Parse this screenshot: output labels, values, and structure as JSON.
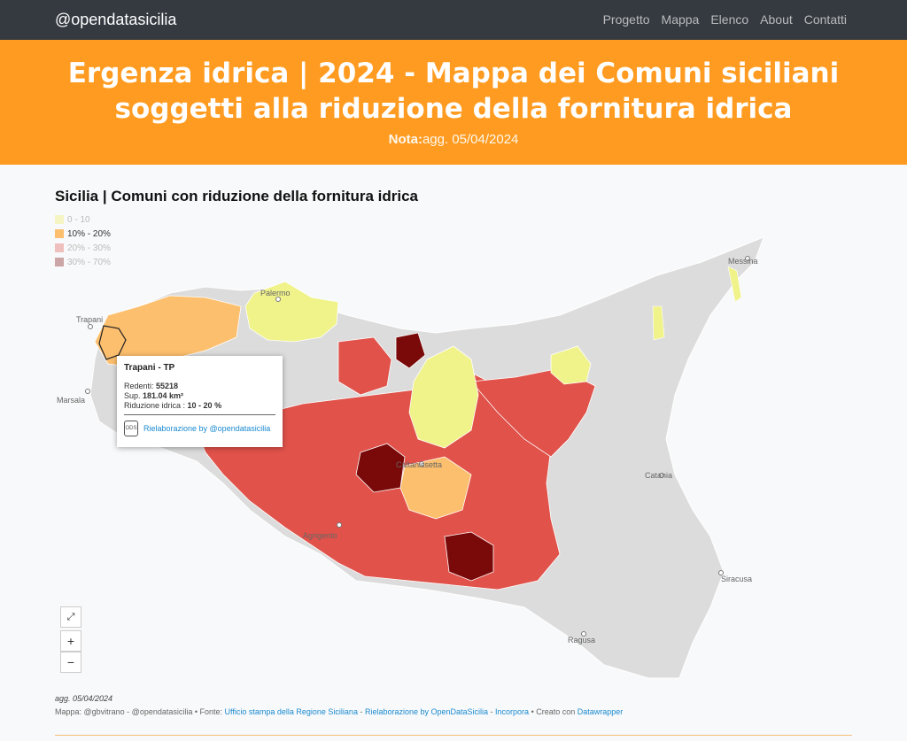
{
  "navbar": {
    "brand": "@opendatasicilia",
    "links": [
      "Progetto",
      "Mappa",
      "Elenco",
      "About",
      "Contatti"
    ]
  },
  "hero": {
    "title": "Ergenza idrica | 2024 - Mappa dei Comuni siciliani soggetti alla riduzione della fornitura idrica",
    "note_label": "Nota:",
    "note_text": "agg. 05/04/2024"
  },
  "map": {
    "title": "Sicilia | Comuni con riduzione della fornitura idrica",
    "legend": [
      {
        "label": "0 - 10",
        "color": "#f0f28a"
      },
      {
        "label": "10% - 20%",
        "color": "#fcbf6e"
      },
      {
        "label": "20% - 30%",
        "color": "#e0524a"
      },
      {
        "label": "30% - 70%",
        "color": "#7a0a0a"
      }
    ],
    "cities": [
      "Palermo",
      "Trapani",
      "Marsala",
      "Messina",
      "Caltanissetta",
      "Catania",
      "Agrigento",
      "Siracusa",
      "Ragusa"
    ],
    "zoom_in": "+",
    "zoom_out": "−"
  },
  "tooltip": {
    "title": "Trapani - TP",
    "residents_label": "Redenti: ",
    "residents_value": "55218",
    "area_label": "Sup. ",
    "area_value": "181.04 km²",
    "reduction_label": "Riduzione idrica : ",
    "reduction_value": "10 - 20 %",
    "credit": "Rielaborazione by @opendatasicilia"
  },
  "footer": {
    "date": "agg. 05/04/2024",
    "map_by": "Mappa: @gbvitrano - @opendatasicilia • Fonte: ",
    "source_link": "Ufficio stampa della Regione Siciliana",
    "sep1": " - ",
    "rework_link": "Rielaborazione by OpenDataSicilia",
    "sep2": " - ",
    "embed_link": "Incorpora",
    "made_with": " • Creato con ",
    "dw_link": "Datawrapper"
  }
}
